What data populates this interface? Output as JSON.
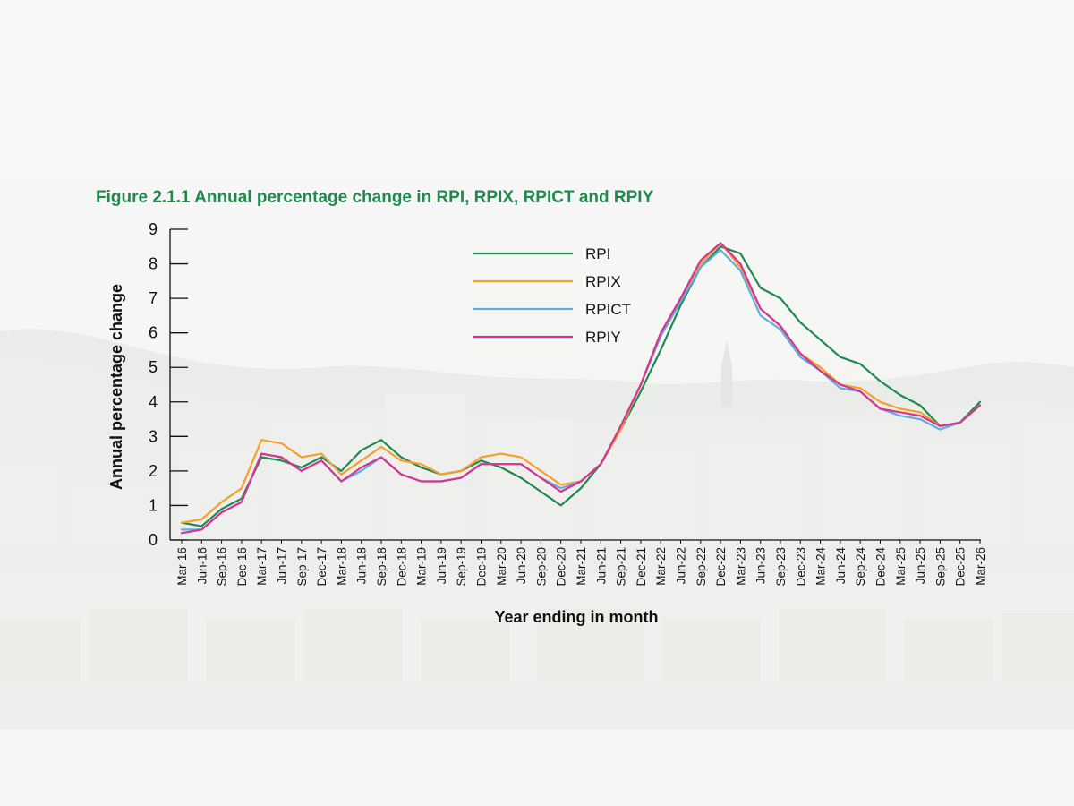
{
  "chart_data": {
    "type": "line",
    "title": "Figure 2.1.1 Annual percentage change in RPI, RPIX, RPICT and RPIY",
    "xlabel": "Year ending in month",
    "ylabel": "Annual percentage change",
    "ylim": [
      0,
      9
    ],
    "yticks": [
      "0",
      "1",
      "2",
      "3",
      "4",
      "5",
      "6",
      "7",
      "8",
      "9"
    ],
    "legend_position": "top-center",
    "categories": [
      "Mar-16",
      "Jun-16",
      "Sep-16",
      "Dec-16",
      "Mar-17",
      "Jun-17",
      "Sep-17",
      "Dec-17",
      "Mar-18",
      "Jun-18",
      "Sep-18",
      "Dec-18",
      "Mar-19",
      "Jun-19",
      "Sep-19",
      "Dec-19",
      "Mar-20",
      "Jun-20",
      "Sep-20",
      "Dec-20",
      "Mar-21",
      "Jun-21",
      "Sep-21",
      "Dec-21",
      "Mar-22",
      "Jun-22",
      "Sep-22",
      "Dec-22",
      "Mar-23",
      "Jun-23",
      "Sep-23",
      "Dec-23",
      "Mar-24",
      "Jun-24",
      "Sep-24",
      "Dec-24",
      "Mar-25",
      "Jun-25",
      "Sep-25",
      "Dec-25",
      "Mar-26"
    ],
    "series": [
      {
        "name": "RPI",
        "color": "#1e8a50",
        "values": [
          0.5,
          0.4,
          0.9,
          1.2,
          2.4,
          2.3,
          2.1,
          2.4,
          2.0,
          2.6,
          2.9,
          2.4,
          2.1,
          1.9,
          2.0,
          2.3,
          2.1,
          1.8,
          1.4,
          1.0,
          1.5,
          2.2,
          3.2,
          4.3,
          5.5,
          6.8,
          7.9,
          8.5,
          8.3,
          7.3,
          7.0,
          6.3,
          5.8,
          5.3,
          5.1,
          4.6,
          4.2,
          3.9,
          3.3,
          3.4,
          4.0
        ]
      },
      {
        "name": "RPIX",
        "color": "#f5a02a",
        "values": [
          0.5,
          0.6,
          1.1,
          1.5,
          2.9,
          2.8,
          2.4,
          2.5,
          1.9,
          2.3,
          2.7,
          2.3,
          2.2,
          1.9,
          2.0,
          2.4,
          2.5,
          2.4,
          2.0,
          1.6,
          1.7,
          2.2,
          3.2,
          4.5,
          5.9,
          7.0,
          8.0,
          8.6,
          7.9,
          6.7,
          6.2,
          5.4,
          5.0,
          4.5,
          4.4,
          4.0,
          3.8,
          3.7,
          3.3,
          3.4,
          3.9
        ]
      },
      {
        "name": "RPICT",
        "color": "#5faee0",
        "values": [
          0.3,
          0.3,
          0.8,
          1.1,
          2.5,
          2.4,
          2.0,
          2.3,
          1.7,
          2.0,
          2.4,
          1.9,
          1.7,
          1.7,
          1.8,
          2.2,
          2.2,
          2.2,
          1.8,
          1.5,
          1.7,
          2.2,
          3.3,
          4.5,
          5.9,
          6.9,
          7.9,
          8.4,
          7.8,
          6.5,
          6.1,
          5.3,
          4.9,
          4.4,
          4.3,
          3.8,
          3.6,
          3.5,
          3.2,
          3.4,
          3.9
        ]
      },
      {
        "name": "RPIY",
        "color": "#d8348e",
        "values": [
          0.2,
          0.3,
          0.8,
          1.1,
          2.5,
          2.4,
          2.0,
          2.3,
          1.7,
          2.1,
          2.4,
          1.9,
          1.7,
          1.7,
          1.8,
          2.2,
          2.2,
          2.2,
          1.8,
          1.4,
          1.7,
          2.2,
          3.3,
          4.5,
          6.0,
          7.0,
          8.1,
          8.6,
          8.0,
          6.7,
          6.2,
          5.4,
          4.9,
          4.5,
          4.3,
          3.8,
          3.7,
          3.6,
          3.3,
          3.4,
          3.9
        ]
      }
    ]
  }
}
